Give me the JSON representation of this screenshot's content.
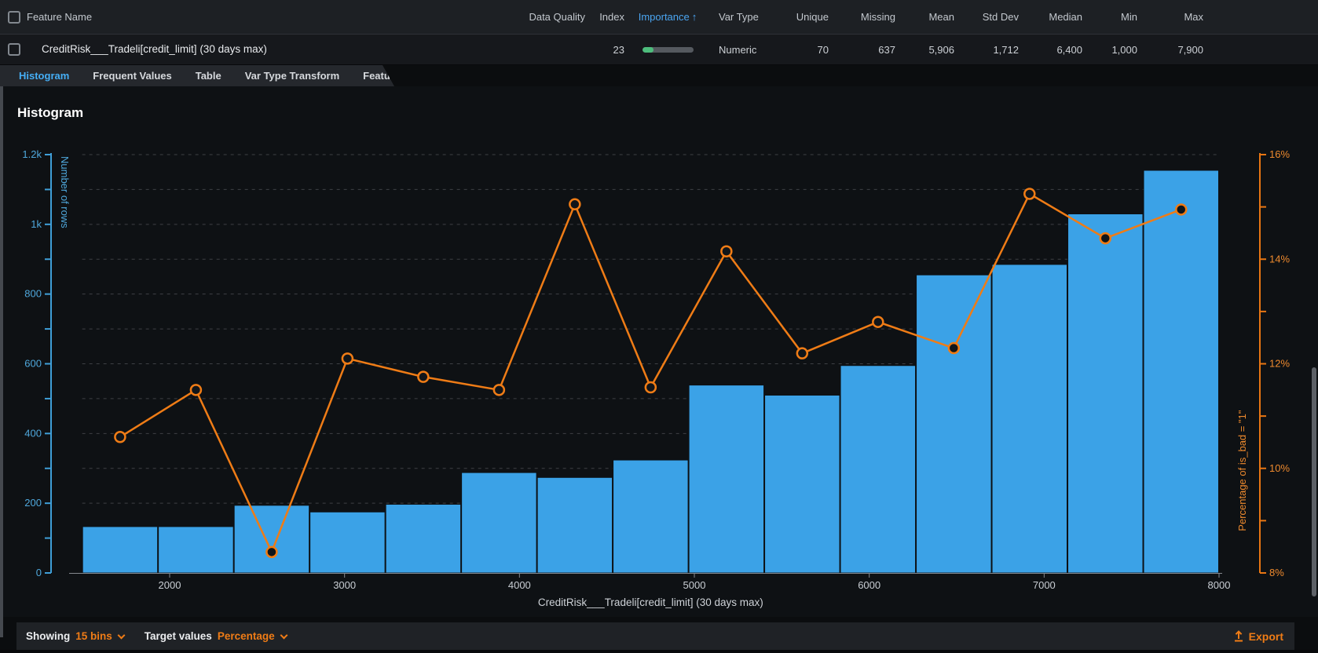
{
  "table": {
    "feature_name_header": "Feature Name",
    "columns": {
      "data_quality": "Data Quality",
      "index": "Index",
      "importance": "Importance",
      "sort_arrow": "↑",
      "var_type": "Var Type",
      "unique": "Unique",
      "missing": "Missing",
      "mean": "Mean",
      "std_dev": "Std Dev",
      "median": "Median",
      "min": "Min",
      "max": "Max"
    },
    "row": {
      "name": "CreditRisk___Tradeli[credit_limit] (30 days max)",
      "index": "23",
      "importance_fill_pct": 22,
      "var_type": "Numeric",
      "unique": "70",
      "missing": "637",
      "mean": "5,906",
      "std_dev": "1,712",
      "median": "6,400",
      "min": "1,000",
      "max": "7,900"
    }
  },
  "tabs": [
    {
      "label": "Histogram",
      "active": true
    },
    {
      "label": "Frequent Values",
      "active": false
    },
    {
      "label": "Table",
      "active": false
    },
    {
      "label": "Var Type Transform",
      "active": false
    },
    {
      "label": "Feature Lineage",
      "active": false
    }
  ],
  "section_title": "Histogram",
  "chart_data": {
    "type": "bar",
    "title": "Histogram",
    "xlabel": "CreditRisk___Tradeli[credit_limit] (30 days max)",
    "ylabel_left": "Number of rows",
    "ylabel_right": "Percentage of is_bad = \"1\"",
    "x_bin_edges": [
      1500,
      1933.3,
      2366.7,
      2800,
      3233.3,
      3666.7,
      4100,
      4533.3,
      4966.7,
      5400,
      5833.3,
      6266.7,
      6700,
      7133.3,
      7566.7,
      8000
    ],
    "bar_values": [
      133,
      133,
      194,
      175,
      197,
      288,
      274,
      324,
      539,
      510,
      595,
      855,
      885,
      1030,
      1155
    ],
    "series": [
      {
        "name": "Percentage of is_bad = \"1\"",
        "values": [
          10.6,
          11.5,
          8.4,
          12.1,
          11.75,
          11.5,
          15.05,
          11.55,
          14.15,
          12.2,
          12.8,
          12.3,
          15.25,
          14.4,
          14.95
        ]
      }
    ],
    "ylim_left": [
      0,
      1200
    ],
    "ylim_right": [
      8,
      16
    ],
    "x_ticks": [
      2000,
      3000,
      4000,
      5000,
      6000,
      7000,
      8000
    ],
    "left_major_ticks": [
      0,
      200,
      400,
      600,
      800,
      1000,
      1200
    ],
    "left_tick_labels": [
      "0",
      "200",
      "400",
      "600",
      "800",
      "1k",
      "1.2k"
    ],
    "right_major_ticks": [
      8,
      10,
      12,
      14,
      16
    ],
    "grid": true,
    "legend_position": "none",
    "colors": {
      "bar": "#3ba2e7",
      "bar_edge": "#0c1014",
      "line": "#ef7c16",
      "marker_fill": "#10151a",
      "left_axis": "#3f9fd8",
      "left_text": "#4fa8dc",
      "right_axis": "#e87613",
      "right_text": "#ee8a2e",
      "grid": "#3e4145",
      "x_axis": "#84898f",
      "x_text": "#c9ced4"
    }
  },
  "footer": {
    "showing_label": "Showing",
    "bins_value": "15 bins",
    "target_label": "Target values",
    "target_value": "Percentage",
    "export_label": "Export"
  }
}
